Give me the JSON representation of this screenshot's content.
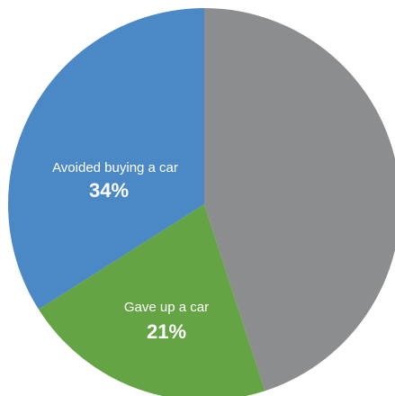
{
  "chart_data": {
    "type": "pie",
    "title": "",
    "start_angle_deg": 0,
    "direction": "counterclockwise",
    "slices": [
      {
        "label": "Avoided buying a car",
        "value": 34,
        "value_label": "34%",
        "color": "#4a88c6"
      },
      {
        "label": "Gave up a car",
        "value": 21,
        "value_label": "21%",
        "color": "#64a445"
      },
      {
        "label": "",
        "value": 45,
        "value_label": "",
        "color": "#8c8d8f"
      }
    ]
  }
}
